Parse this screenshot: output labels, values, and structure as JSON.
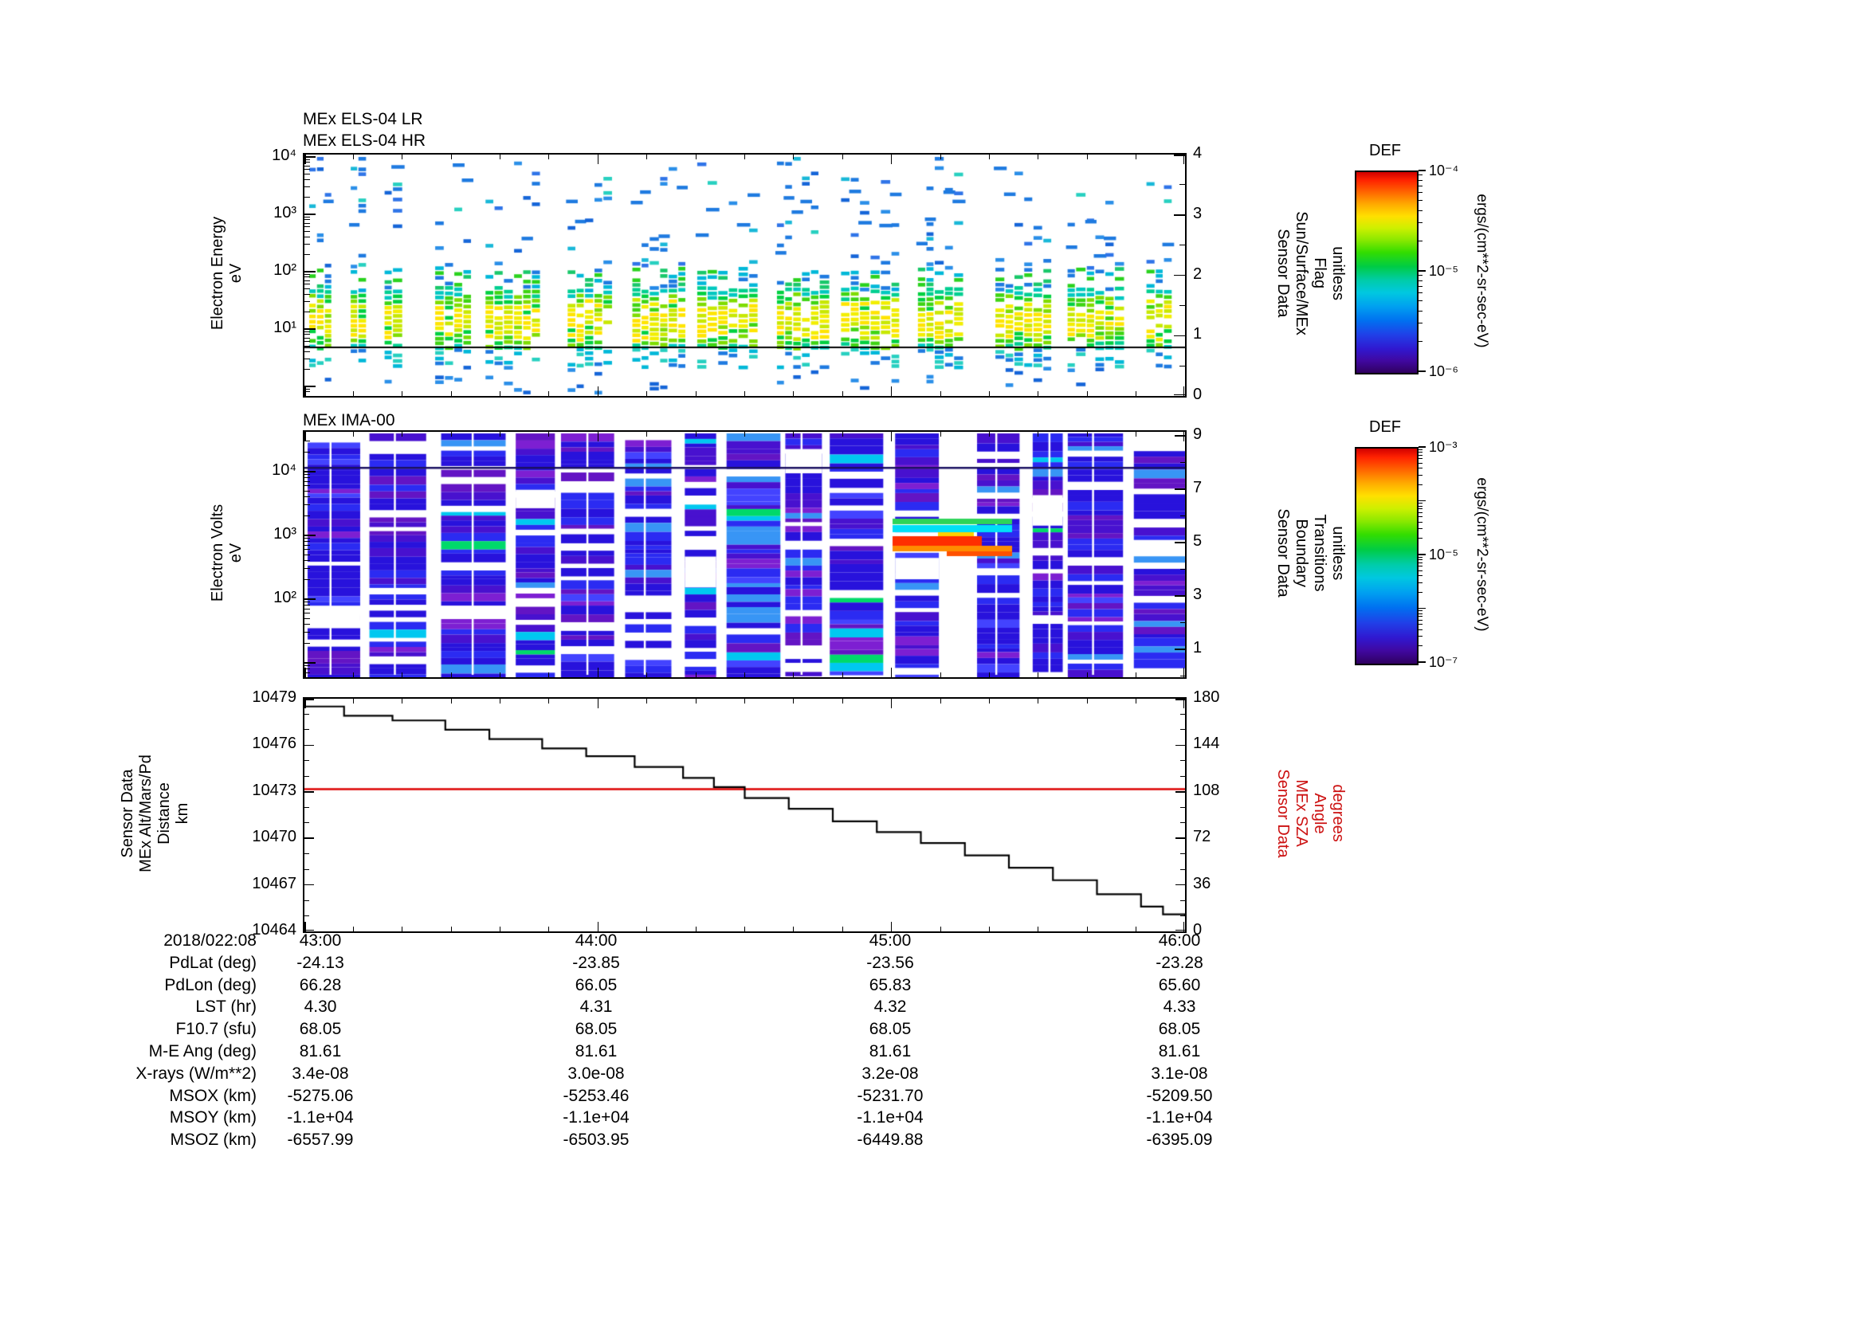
{
  "panels": {
    "els": {
      "titles": [
        "MEx ELS-04 LR",
        "MEx ELS-04 HR"
      ],
      "left_label_lines": [
        "Electron Energy",
        "eV"
      ],
      "left_tick_labels": [
        "10⁴",
        "10³",
        "10²",
        "10¹"
      ],
      "right_label_lines": [
        "Sensor Data",
        "Sun/Surface/MEx",
        "Flag",
        "unitless"
      ],
      "right_tick_labels": [
        "4",
        "3",
        "2",
        "1",
        "0"
      ]
    },
    "ima": {
      "title": "MEx IMA-00",
      "left_label_lines": [
        "Electron Volts",
        "eV"
      ],
      "left_tick_labels": [
        "10⁴",
        "10³",
        "10²"
      ],
      "right_label_lines": [
        "Sensor Data",
        "Boundary",
        "Transitions",
        "unitless"
      ],
      "right_tick_labels": [
        "9",
        "7",
        "5",
        "3",
        "1"
      ]
    },
    "alt": {
      "left_label_lines": [
        "Sensor Data",
        "MEx Alt/Mars/Pd",
        "Distance",
        "km"
      ],
      "left_tick_labels": [
        "10479",
        "10476",
        "10473",
        "10470",
        "10467",
        "10464"
      ],
      "right_label_lines": [
        "Sensor Data",
        "MEx SZA",
        "Angle",
        "degrees"
      ],
      "right_tick_labels": [
        "180",
        "144",
        "108",
        "72",
        "36",
        "0"
      ],
      "right_color": "#cc1111"
    }
  },
  "colorbars": [
    {
      "title": "DEF",
      "tick_labels": [
        "10⁻⁴",
        "10⁻⁵",
        "10⁻⁶"
      ],
      "unit": "ergs/(cm**2-sr-sec-eV)"
    },
    {
      "title": "DEF",
      "tick_labels": [
        "10⁻³",
        "10⁻⁵",
        "10⁻⁷"
      ],
      "unit": "ergs/(cm**2-sr-sec-eV)"
    }
  ],
  "table": {
    "rows": [
      {
        "label": "2018/022:08",
        "values": [
          "43:00",
          "44:00",
          "45:00",
          "46:00"
        ]
      },
      {
        "label": "PdLat (deg)",
        "values": [
          "-24.13",
          "-23.85",
          "-23.56",
          "-23.28"
        ]
      },
      {
        "label": "PdLon (deg)",
        "values": [
          "66.28",
          "66.05",
          "65.83",
          "65.60"
        ]
      },
      {
        "label": "LST (hr)",
        "values": [
          "4.30",
          "4.31",
          "4.32",
          "4.33"
        ]
      },
      {
        "label": "F10.7 (sfu)",
        "values": [
          "68.05",
          "68.05",
          "68.05",
          "68.05"
        ]
      },
      {
        "label": "M-E Ang (deg)",
        "values": [
          "81.61",
          "81.61",
          "81.61",
          "81.61"
        ]
      },
      {
        "label": "X-rays (W/m**2)",
        "values": [
          "3.4e-08",
          "3.0e-08",
          "3.2e-08",
          "3.1e-08"
        ]
      },
      {
        "label": "MSOX (km)",
        "values": [
          "-5275.06",
          "-5253.46",
          "-5231.70",
          "-5209.50"
        ]
      },
      {
        "label": "MSOY (km)",
        "values": [
          "-1.1e+04",
          "-1.1e+04",
          "-1.1e+04",
          "-1.1e+04"
        ]
      },
      {
        "label": "MSOZ (km)",
        "values": [
          "-6557.99",
          "-6503.95",
          "-6449.88",
          "-6395.09"
        ]
      }
    ]
  },
  "chart_data": [
    {
      "type": "heatmap",
      "title": "MEx ELS-04 LR / MEx ELS-04 HR",
      "ylabel": "Electron Energy (eV)",
      "y_scale": "log",
      "y_ticks": [
        10,
        100,
        1000,
        10000
      ],
      "x_ticks": [
        "43:00",
        "44:00",
        "45:00",
        "46:00"
      ],
      "x_range": [
        "2018/022 08:43:00",
        "2018/022 08:46:00"
      ],
      "right_axis": {
        "label": "Sensor Data Sun/Surface/MEx Flag (unitless)",
        "range": [
          0,
          4
        ],
        "constant_flag_value": 0.8
      },
      "colorbar": {
        "title": "DEF",
        "unit": "ergs/(cm**2-sr-sec-eV)",
        "scale": "log",
        "range": [
          1e-06,
          0.0001
        ]
      },
      "description": "Sparse electron spectrogram: flux concentrated between ~5 and 100 eV (green-yellow, ~1e-5 to 1e-4), scattered blue bars up to 1e4 eV, periodic vertical data gaps; horizontal black flag line near 0.8",
      "render_seed": 20180122
    },
    {
      "type": "heatmap",
      "title": "MEx IMA-00",
      "ylabel": "Electron Volts (eV)",
      "y_scale": "log",
      "y_ticks": [
        100,
        1000,
        10000
      ],
      "x_ticks": [
        "43:00",
        "44:00",
        "45:00",
        "46:00"
      ],
      "right_axis": {
        "label": "Sensor Data Boundary Transitions (unitless)",
        "range": [
          0,
          9
        ]
      },
      "colorbar": {
        "title": "DEF",
        "unit": "ergs/(cm**2-sr-sec-eV)",
        "scale": "log",
        "range": [
          1e-07,
          0.001
        ]
      },
      "description": "Dense ion spectrogram: blue/violet low-flux horizontal stripes with white data gaps in ~16 column groups; enhanced red/orange flux patch near 600-1000 eV around 08:45:10; dark horizontal line near top",
      "render_seed": 771
    },
    {
      "type": "line",
      "x_ticks": [
        "43:00",
        "44:00",
        "45:00",
        "46:00"
      ],
      "left_axis": {
        "label": "Sensor Data MEx Alt/Mars/Pd Distance (km)",
        "range": [
          10464,
          10479
        ]
      },
      "right_axis": {
        "label": "Sensor Data MEx SZA Angle (degrees)",
        "range": [
          0,
          180
        ]
      },
      "series": [
        {
          "name": "MEx Alt/Mars/Pd Distance",
          "color": "#000000",
          "axis": "left",
          "step": true,
          "points": [
            [
              0,
              10478.5
            ],
            [
              0.045,
              10477.9
            ],
            [
              0.1,
              10477.6
            ],
            [
              0.16,
              10477.0
            ],
            [
              0.21,
              10476.4
            ],
            [
              0.27,
              10475.8
            ],
            [
              0.32,
              10475.3
            ],
            [
              0.375,
              10474.6
            ],
            [
              0.43,
              10473.9
            ],
            [
              0.465,
              10473.3
            ],
            [
              0.5,
              10472.6
            ],
            [
              0.55,
              10471.9
            ],
            [
              0.6,
              10471.1
            ],
            [
              0.65,
              10470.4
            ],
            [
              0.7,
              10469.7
            ],
            [
              0.75,
              10468.9
            ],
            [
              0.8,
              10468.1
            ],
            [
              0.85,
              10467.3
            ],
            [
              0.9,
              10466.4
            ],
            [
              0.95,
              10465.6
            ],
            [
              0.975,
              10465.1
            ],
            [
              1.0,
              10465.0
            ]
          ]
        },
        {
          "name": "MEx SZA Angle",
          "color": "#dd0000",
          "axis": "right",
          "points": [
            [
              0,
              110
            ],
            [
              1,
              110
            ]
          ]
        }
      ]
    }
  ]
}
